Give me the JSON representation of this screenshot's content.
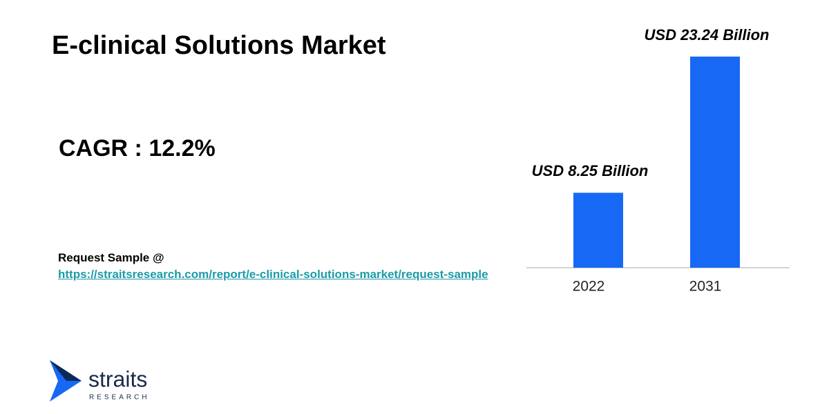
{
  "chart_data": {
    "type": "bar",
    "title": "E-clinical Solutions Market",
    "categories": [
      "2022",
      "2031"
    ],
    "values": [
      8.25,
      23.24
    ],
    "value_labels": [
      "USD 8.25 Billion",
      "USD 23.24 Billion"
    ],
    "color": "#1769f5"
  },
  "cagr": "CAGR : 12.2%",
  "request": {
    "label": "Request Sample @",
    "url": "https://straitsresearch.com/report/e-clinical-solutions-market/request-sample"
  },
  "logo": {
    "name": "straits",
    "tagline": "RESEARCH"
  }
}
